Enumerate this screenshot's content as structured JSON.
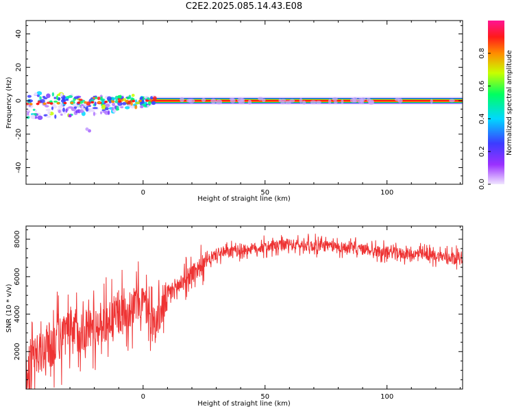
{
  "title": "C2E2.2025.085.14.43.E08",
  "chart_data": [
    {
      "type": "heatmap",
      "xlabel": "Height of straight line (km)",
      "ylabel": "Frequency (Hz)",
      "xlim": [
        -48,
        131
      ],
      "ylim": [
        -50,
        48
      ],
      "xticks": [
        0,
        50,
        100
      ],
      "yticks": [
        -40,
        -20,
        0,
        20,
        40
      ],
      "ridge_frequency": 0,
      "colorbar": {
        "label": "Normalized spectral amplitude",
        "range": [
          0,
          1
        ],
        "ticks": [
          "0.0",
          "0.2",
          "0.4",
          "0.6",
          "0.8"
        ],
        "colors": [
          "#f0e6ff",
          "#9b30ff",
          "#3c3cff",
          "#00d8ff",
          "#00ff60",
          "#c8ff00",
          "#ff8c00",
          "#ff1a1a",
          "#ff1493"
        ]
      }
    },
    {
      "type": "line",
      "xlabel": "Height of straight line (km)",
      "ylabel": "SNR (10 * v/v)",
      "xlim": [
        -48,
        131
      ],
      "ylim": [
        0,
        8700
      ],
      "xticks": [
        0,
        50,
        100
      ],
      "yticks": [
        2000,
        4000,
        6000,
        8000
      ],
      "color": "#ee3333",
      "trend": [
        {
          "x": -48,
          "y": 800
        },
        {
          "x": -40,
          "y": 2200
        },
        {
          "x": -30,
          "y": 3000
        },
        {
          "x": -20,
          "y": 3300
        },
        {
          "x": -10,
          "y": 4000
        },
        {
          "x": 0,
          "y": 4700
        },
        {
          "x": 5,
          "y": 3400
        },
        {
          "x": 10,
          "y": 5000
        },
        {
          "x": 20,
          "y": 6200
        },
        {
          "x": 30,
          "y": 7200
        },
        {
          "x": 45,
          "y": 7500
        },
        {
          "x": 60,
          "y": 7700
        },
        {
          "x": 80,
          "y": 7600
        },
        {
          "x": 100,
          "y": 7300
        },
        {
          "x": 131,
          "y": 7000
        }
      ]
    }
  ]
}
